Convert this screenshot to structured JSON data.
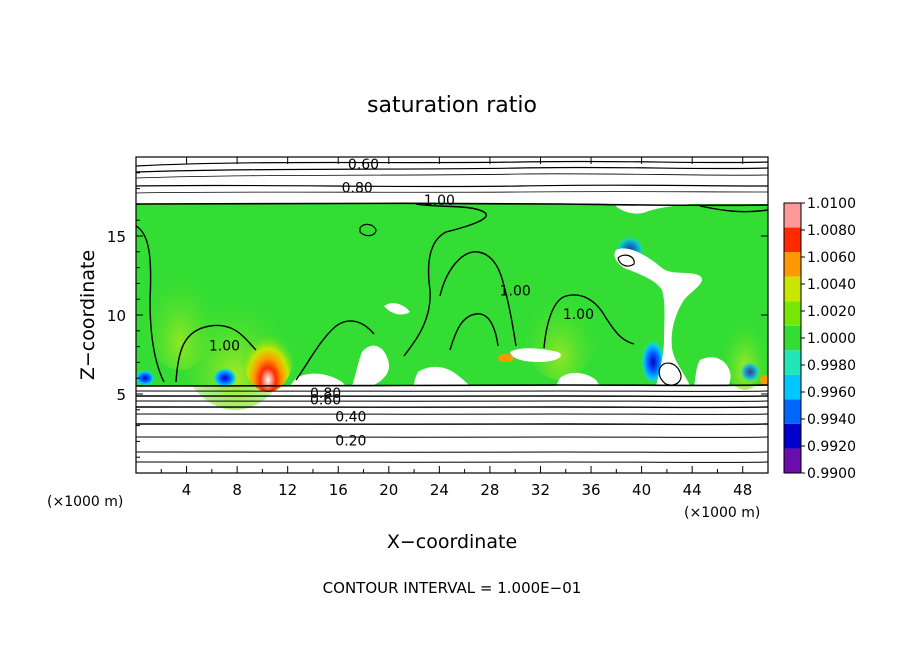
{
  "chart_data": {
    "type": "heatmap",
    "title": "saturation ratio",
    "xlabel": "X−coordinate",
    "ylabel": "Z−coordinate",
    "x_unit_left": "(×1000 m)",
    "x_unit_right": "(×1000 m)",
    "xlim": [
      0,
      50
    ],
    "ylim": [
      0,
      20
    ],
    "x_ticks": [
      4,
      8,
      12,
      16,
      20,
      24,
      28,
      32,
      36,
      40,
      44,
      48
    ],
    "x_tick_labels": [
      "4",
      "8",
      "12",
      "16",
      "20",
      "24",
      "28",
      "32",
      "36",
      "40",
      "44",
      "48"
    ],
    "y_ticks": [
      5,
      10,
      15
    ],
    "y_tick_labels": [
      "5",
      "10",
      "15"
    ],
    "grid": false,
    "footer": "CONTOUR INTERVAL = 1.000E−01",
    "colorbar": {
      "levels": [
        0.99,
        0.992,
        0.994,
        0.996,
        0.998,
        1.0,
        1.002,
        1.004,
        1.006,
        1.008,
        1.01
      ],
      "labels": [
        "1.0100",
        "1.0080",
        "1.0060",
        "1.0040",
        "1.0020",
        "1.0000",
        "0.9980",
        "0.9960",
        "0.9940",
        "0.9920",
        "0.9900"
      ],
      "colors": [
        "#6a0dad",
        "#0000cc",
        "#0066ff",
        "#00c8ff",
        "#22e5b8",
        "#33dd33",
        "#77e600",
        "#c8e600",
        "#ff9900",
        "#ff2a00",
        "#ff9999"
      ]
    },
    "contour_labels": [
      {
        "text": "0.60",
        "x": 18.0,
        "z": 19.5
      },
      {
        "text": "0.80",
        "x": 17.5,
        "z": 18.0
      },
      {
        "text": "1.00",
        "x": 24.0,
        "z": 17.2
      },
      {
        "text": "1.00",
        "x": 30.0,
        "z": 11.5
      },
      {
        "text": "1.00",
        "x": 35.0,
        "z": 10.0
      },
      {
        "text": "1.00",
        "x": 7.0,
        "z": 8.0
      },
      {
        "text": "0.80",
        "x": 15.0,
        "z": 5.0
      },
      {
        "text": "0.60",
        "x": 15.0,
        "z": 4.6
      },
      {
        "text": "0.40",
        "x": 17.0,
        "z": 3.5
      },
      {
        "text": "0.20",
        "x": 17.0,
        "z": 2.0
      }
    ]
  }
}
